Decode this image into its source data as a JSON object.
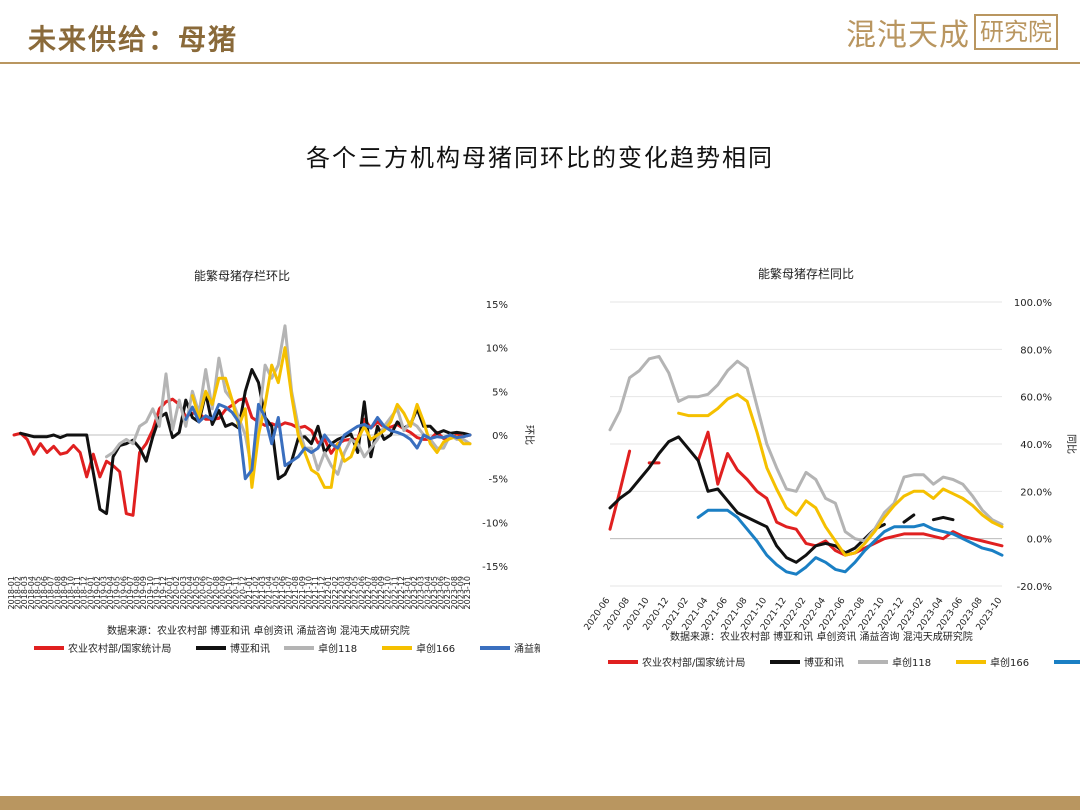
{
  "header": {
    "title": "未来供给：母猪",
    "logo_text": "混沌天成",
    "logo_box": "研究院"
  },
  "subtitle": "各个三方机构母猪同环比的变化趋势相同",
  "colors": {
    "red": "#e02020",
    "black": "#111111",
    "gray": "#b4b4b4",
    "yellow": "#f5c000",
    "blue": "#3a6fbf",
    "blue2": "#1a7fc4"
  },
  "chart_data": [
    {
      "type": "line",
      "title": "能繁母猪存栏环比",
      "ylabel": "环比",
      "ylim": [
        -15,
        15
      ],
      "yticks": [
        "15%",
        "10%",
        "5%",
        "0%",
        "-5%",
        "-10%",
        "-15%"
      ],
      "yticks_values": [
        15,
        10,
        5,
        0,
        -5,
        -10,
        -15
      ],
      "x": [
        "2018-01",
        "2018-02",
        "2018-03",
        "2018-04",
        "2018-05",
        "2018-06",
        "2018-07",
        "2018-08",
        "2018-09",
        "2018-10",
        "2018-11",
        "2018-12",
        "2019-01",
        "2019-02",
        "2019-03",
        "2019-04",
        "2019-05",
        "2019-06",
        "2019-07",
        "2019-08",
        "2019-09",
        "2019-10",
        "2019-11",
        "2019-12",
        "2020-01",
        "2020-02",
        "2020-03",
        "2020-04",
        "2020-05",
        "2020-06",
        "2020-07",
        "2020-08",
        "2020-09",
        "2020-10",
        "2020-11",
        "2020-12",
        "2021-01",
        "2021-02",
        "2021-03",
        "2021-04",
        "2021-05",
        "2021-06",
        "2021-07",
        "2021-08",
        "2021-09",
        "2021-10",
        "2021-11",
        "2021-12",
        "2022-01",
        "2022-02",
        "2022-03",
        "2022-04",
        "2022-05",
        "2022-06",
        "2022-07",
        "2022-08",
        "2022-09",
        "2022-10",
        "2022-11",
        "2022-12",
        "2023-01",
        "2023-02",
        "2023-03",
        "2023-04",
        "2023-05",
        "2023-06",
        "2023-07",
        "2023-08",
        "2023-09",
        "2023-10"
      ],
      "source": "数据来源：农业农村部 博亚和讯 卓创资讯 涌益咨询 混沌天成研究院",
      "series": [
        {
          "name": "农业农村部/国家统计局",
          "color": "#e02020",
          "values": [
            0,
            0.2,
            -0.5,
            -2.2,
            -1,
            -2,
            -1.3,
            -2.2,
            -2,
            -1.2,
            -2,
            -4.8,
            -2.2,
            -4.8,
            -3,
            -3.5,
            -4.2,
            -9,
            -9.2,
            -2,
            -1,
            0.6,
            3,
            3.8,
            4.1,
            3.5,
            2.1,
            2.5,
            2.5,
            1.8,
            1.8,
            1.9,
            2.9,
            3.4,
            4,
            4.2,
            2,
            1.5,
            1.1,
            1.3,
            1,
            1.4,
            1.2,
            0.8,
            1,
            0.5,
            -0.9,
            -0.5,
            -2.1,
            -1,
            -0.6,
            -0.5,
            -0.5,
            1.8,
            0.8,
            1.5,
            0.9,
            0.9,
            1.2,
            0.7,
            0.3,
            -0.3,
            -0.5,
            -0.5,
            0.3,
            -0.4,
            -0.4,
            0,
            -0.2,
            0
          ]
        },
        {
          "name": "博亚和讯",
          "color": "#111111",
          "values": [
            null,
            0.2,
            0,
            -0.2,
            -0.2,
            -0.2,
            0,
            -0.3,
            0,
            0,
            0,
            0,
            -4.3,
            -8.5,
            -9,
            -2.5,
            -1.2,
            -1,
            -0.6,
            -1.5,
            -3,
            -0.2,
            2,
            2.5,
            -0.3,
            0.3,
            4,
            2,
            1.5,
            4.8,
            1.2,
            2.8,
            1,
            1.3,
            0.8,
            5,
            7.5,
            6,
            2,
            1,
            -5,
            -4.5,
            -3,
            -0.4,
            -0.2,
            -1,
            1,
            -2,
            -1,
            -0.5,
            -0.2,
            0.1,
            -2,
            3.8,
            -2.5,
            1,
            -0.5,
            0,
            1.5,
            0.8,
            1.2,
            3,
            1,
            1,
            0.2,
            0.5,
            0.2,
            0.3,
            0.2,
            0
          ]
        },
        {
          "name": "卓创118",
          "color": "#b4b4b4",
          "values": [
            null,
            null,
            null,
            null,
            null,
            null,
            null,
            null,
            null,
            null,
            null,
            null,
            null,
            null,
            -2.5,
            -2,
            -1,
            -0.5,
            -1,
            1,
            1.5,
            3,
            1,
            7,
            0.6,
            4,
            1,
            5,
            2.5,
            7.5,
            3,
            8.8,
            5,
            4,
            2,
            0,
            -4,
            1.5,
            8,
            6.5,
            8,
            12.5,
            5,
            1,
            -1.5,
            -1.5,
            -4,
            -2,
            -3.5,
            -4.5,
            -2,
            -0.5,
            -1,
            -2.5,
            -1.5,
            -0.5,
            1,
            2,
            3,
            0.5,
            1.5,
            1,
            0,
            -0.5,
            -1.5,
            -1.5,
            0,
            -0.5,
            -0.5,
            -1
          ]
        },
        {
          "name": "卓创166",
          "color": "#f5c000",
          "values": [
            null,
            null,
            null,
            null,
            null,
            null,
            null,
            null,
            null,
            null,
            null,
            null,
            null,
            null,
            null,
            null,
            null,
            null,
            null,
            null,
            null,
            null,
            null,
            null,
            null,
            null,
            null,
            4.5,
            2,
            5,
            3.5,
            6.5,
            6.5,
            4,
            1,
            3,
            -6,
            0,
            3.5,
            8,
            6,
            10,
            4.5,
            0,
            -2,
            -4,
            -4.5,
            -6,
            -6,
            -1,
            -3,
            -2.5,
            -0.5,
            1,
            -0.5,
            0,
            0.5,
            1.5,
            3.5,
            2.5,
            1,
            3.5,
            1.5,
            -1,
            -2,
            -0.8,
            -0.4,
            -0.2,
            -1,
            -1
          ]
        },
        {
          "name": "涌益新",
          "color": "#3a6fbf",
          "values": [
            null,
            null,
            null,
            null,
            null,
            null,
            null,
            null,
            null,
            null,
            null,
            null,
            null,
            null,
            null,
            null,
            null,
            null,
            null,
            null,
            null,
            null,
            null,
            null,
            null,
            null,
            1.8,
            3.2,
            1.5,
            2.2,
            1.8,
            3.5,
            3.2,
            2.6,
            1.5,
            -5,
            -4,
            3.5,
            2,
            -1,
            2,
            -3.5,
            -3,
            -2.5,
            -1.5,
            -2,
            -1.5,
            0,
            -1,
            -1.5,
            0,
            0.5,
            1,
            1.2,
            0.8,
            2,
            1,
            0.5,
            0.3,
            0,
            -0.5,
            -1.5,
            0,
            -0.4,
            -0.2,
            -0.3,
            0,
            -0.3,
            -0.2,
            0
          ]
        }
      ]
    },
    {
      "type": "line",
      "title": "能繁母猪存栏同比",
      "ylabel": "同比",
      "ylim": [
        -20,
        100
      ],
      "yticks": [
        "100.0%",
        "80.0%",
        "60.0%",
        "40.0%",
        "20.0%",
        "0.0%",
        "-20.0%"
      ],
      "yticks_values": [
        100,
        80,
        60,
        40,
        20,
        0,
        -20
      ],
      "x": [
        "2020-06",
        "2020-07",
        "2020-08",
        "2020-09",
        "2020-10",
        "2020-11",
        "2020-12",
        "2021-01",
        "2021-02",
        "2021-03",
        "2021-04",
        "2021-05",
        "2021-06",
        "2021-07",
        "2021-08",
        "2021-09",
        "2021-10",
        "2021-11",
        "2021-12",
        "2022-01",
        "2022-02",
        "2022-03",
        "2022-04",
        "2022-05",
        "2022-06",
        "2022-07",
        "2022-08",
        "2022-09",
        "2022-10",
        "2022-11",
        "2022-12",
        "2023-01",
        "2023-02",
        "2023-03",
        "2023-04",
        "2023-05",
        "2023-06",
        "2023-07",
        "2023-08",
        "2023-09",
        "2023-10"
      ],
      "xtick_labels": [
        "2020-06",
        "2020-08",
        "2020-10",
        "2020-12",
        "2021-02",
        "2021-04",
        "2021-06",
        "2021-08",
        "2021-10",
        "2021-12",
        "2022-02",
        "2022-04",
        "2022-06",
        "2022-08",
        "2022-10",
        "2022-12",
        "2023-02",
        "2023-04",
        "2023-06",
        "2023-08",
        "2023-10"
      ],
      "source": "数据来源：农业农村部 博亚和讯 卓创资讯 涌益咨询 混沌天成研究院",
      "series": [
        {
          "name": "农业农村部/国家统计局",
          "color": "#e02020",
          "values": [
            4,
            20,
            37,
            null,
            32,
            32,
            null,
            null,
            34,
            null,
            null,
            null,
            null,
            null,
            null,
            null,
            null,
            null,
            null,
            null,
            null,
            null,
            null,
            null,
            null,
            null,
            null,
            null,
            null,
            null,
            null,
            null,
            null,
            null,
            null,
            null,
            null,
            null,
            null,
            null,
            null
          ]
        },
        {
          "name": "农业农村部/国家统计局",
          "color": "#e02020",
          "values": [
            null,
            null,
            null,
            null,
            null,
            null,
            null,
            null,
            null,
            33,
            45,
            23,
            36,
            29,
            25,
            20,
            17,
            7,
            5,
            4,
            -2,
            -3,
            -1,
            -5,
            -7,
            -6,
            -4,
            -2,
            0,
            1,
            2,
            2,
            2,
            1,
            0,
            3,
            1,
            0,
            -1,
            -2,
            -3
          ]
        },
        {
          "name": "博亚和讯",
          "color": "#111111",
          "values": [
            13,
            17,
            20,
            25,
            30,
            36,
            41,
            43,
            38,
            33,
            20,
            21,
            16,
            11,
            9,
            7,
            5,
            -3,
            -8,
            -10,
            -7,
            -3,
            -2,
            -3,
            -6,
            -4,
            0,
            4,
            6,
            null,
            7,
            10,
            null,
            8,
            9,
            8,
            null,
            null,
            null,
            null,
            null
          ]
        },
        {
          "name": "卓创118",
          "color": "#b4b4b4",
          "values": [
            46,
            54,
            68,
            71,
            76,
            77,
            70,
            58,
            60,
            60,
            61,
            65,
            71,
            75,
            72,
            56,
            40,
            30,
            21,
            20,
            28,
            25,
            17,
            15,
            3,
            0,
            -1,
            4,
            11,
            15,
            26,
            27,
            27,
            23,
            26,
            25,
            23,
            18,
            12,
            8,
            6
          ]
        },
        {
          "name": "卓创166",
          "color": "#f5c000",
          "values": [
            null,
            null,
            null,
            null,
            null,
            null,
            null,
            53,
            52,
            52,
            52,
            55,
            59,
            61,
            58,
            45,
            30,
            21,
            13,
            10,
            16,
            13,
            5,
            -1,
            -7,
            -6,
            -2,
            3,
            9,
            14,
            18,
            20,
            20,
            17,
            21,
            19,
            17,
            14,
            10,
            7,
            5
          ]
        },
        {
          "name": "涌益新",
          "color": "#1a7fc4",
          "values": [
            null,
            null,
            null,
            null,
            null,
            null,
            null,
            null,
            null,
            9,
            12,
            12,
            12,
            9,
            4,
            -1,
            -7,
            -11,
            -14,
            -15,
            -12,
            -8,
            -10,
            -13,
            -14,
            -10,
            -5,
            -1,
            3,
            5,
            5,
            5,
            6,
            4,
            3,
            2,
            0,
            -2,
            -4,
            -5,
            -7
          ]
        }
      ]
    }
  ]
}
